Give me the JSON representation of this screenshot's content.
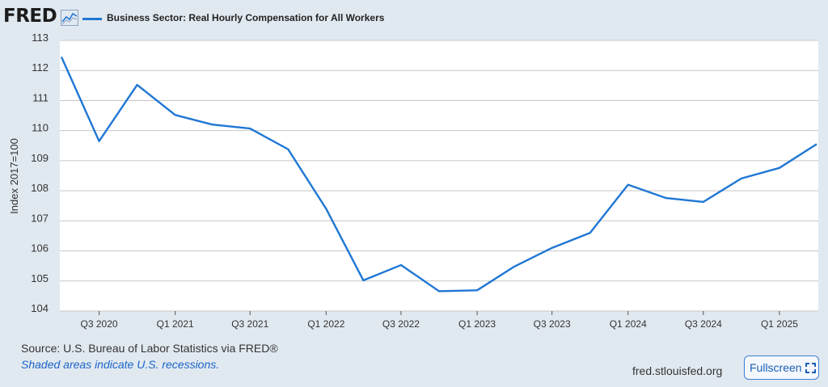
{
  "header": {
    "logo_text": "FRED",
    "logo_icon": "line-chart-icon",
    "legend_label": "Business Sector: Real Hourly Compensation for All Workers"
  },
  "chart_data": {
    "type": "line",
    "title": "",
    "xlabel": "",
    "ylabel": "Index 2017=100",
    "ylim": [
      104,
      113
    ],
    "yticks": [
      104,
      105,
      106,
      107,
      108,
      109,
      110,
      111,
      112,
      113
    ],
    "x_tick_labels": [
      "Q3 2020",
      "Q1 2021",
      "Q3 2021",
      "Q1 2022",
      "Q3 2022",
      "Q1 2023",
      "Q3 2023",
      "Q1 2024",
      "Q3 2024",
      "Q1 2025"
    ],
    "x": [
      "2020-04-01",
      "2020-07-01",
      "2020-10-01",
      "2021-01-01",
      "2021-04-01",
      "2021-07-01",
      "2021-10-01",
      "2022-01-01",
      "2022-04-01",
      "2022-07-01",
      "2022-10-01",
      "2023-01-01",
      "2023-04-01",
      "2023-07-01",
      "2023-10-01",
      "2024-01-01",
      "2024-04-01",
      "2024-07-01",
      "2024-10-01",
      "2025-01-01",
      "2025-04-01"
    ],
    "series": [
      {
        "name": "Business Sector: Real Hourly Compensation for All Workers",
        "color": "#1f77d4",
        "values": [
          112.45,
          109.65,
          111.52,
          110.52,
          110.2,
          110.07,
          109.38,
          107.4,
          105.02,
          105.53,
          104.66,
          104.69,
          105.48,
          106.1,
          106.6,
          108.2,
          107.76,
          107.63,
          108.41,
          108.76,
          109.55
        ]
      }
    ],
    "grid": true,
    "legend_position": "top-left"
  },
  "footer": {
    "source": "Source: U.S. Bureau of Labor Statistics via FRED®",
    "recession_note": "Shaded areas indicate U.S. recessions.",
    "site": "fred.stlouisfed.org",
    "fullscreen_label": "Fullscreen"
  }
}
